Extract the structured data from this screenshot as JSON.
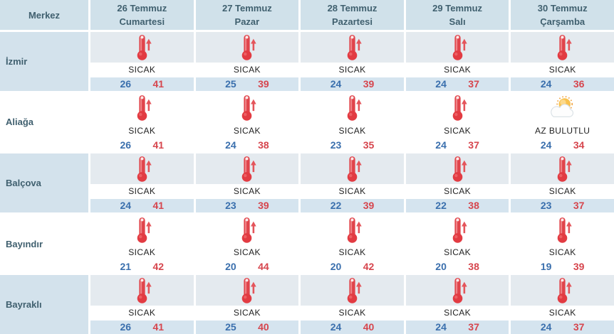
{
  "colors": {
    "header_bg": "#d0e1ea",
    "row_tint_bg": "#d3e2ec",
    "icon_area_tint_bg": "#e4eaef",
    "temps_tint_bg": "#d5e4ef",
    "header_text": "#40606f",
    "min_temp": "#3a6fad",
    "max_temp": "#d6454d",
    "condition_text": "#1f1f1f",
    "thermometer_red": "#e23b42",
    "sun_orange": "#f8c14e"
  },
  "table": {
    "header": {
      "merkez_label": "Merkez",
      "days": [
        {
          "date": "26 Temmuz",
          "day": "Cumartesi"
        },
        {
          "date": "27 Temmuz",
          "day": "Pazar"
        },
        {
          "date": "28 Temmuz",
          "day": "Pazartesi"
        },
        {
          "date": "29 Temmuz",
          "day": "Salı"
        },
        {
          "date": "30 Temmuz",
          "day": "Çarşamba"
        }
      ]
    },
    "rows": [
      {
        "city": "İzmir",
        "cells": [
          {
            "icon": "thermometer-rising-icon",
            "condition": "SICAK",
            "min": "26",
            "max": "41"
          },
          {
            "icon": "thermometer-rising-icon",
            "condition": "SICAK",
            "min": "25",
            "max": "39"
          },
          {
            "icon": "thermometer-rising-icon",
            "condition": "SICAK",
            "min": "24",
            "max": "39"
          },
          {
            "icon": "thermometer-rising-icon",
            "condition": "SICAK",
            "min": "24",
            "max": "37"
          },
          {
            "icon": "thermometer-rising-icon",
            "condition": "SICAK",
            "min": "24",
            "max": "36"
          }
        ]
      },
      {
        "city": "Aliağa",
        "cells": [
          {
            "icon": "thermometer-rising-icon",
            "condition": "SICAK",
            "min": "26",
            "max": "41"
          },
          {
            "icon": "thermometer-rising-icon",
            "condition": "SICAK",
            "min": "24",
            "max": "38"
          },
          {
            "icon": "thermometer-rising-icon",
            "condition": "SICAK",
            "min": "23",
            "max": "35"
          },
          {
            "icon": "thermometer-rising-icon",
            "condition": "SICAK",
            "min": "24",
            "max": "37"
          },
          {
            "icon": "partly-cloudy-icon",
            "condition": "AZ BULUTLU",
            "min": "24",
            "max": "34"
          }
        ]
      },
      {
        "city": "Balçova",
        "cells": [
          {
            "icon": "thermometer-rising-icon",
            "condition": "SICAK",
            "min": "24",
            "max": "41"
          },
          {
            "icon": "thermometer-rising-icon",
            "condition": "SICAK",
            "min": "23",
            "max": "39"
          },
          {
            "icon": "thermometer-rising-icon",
            "condition": "SICAK",
            "min": "22",
            "max": "39"
          },
          {
            "icon": "thermometer-rising-icon",
            "condition": "SICAK",
            "min": "22",
            "max": "38"
          },
          {
            "icon": "thermometer-rising-icon",
            "condition": "SICAK",
            "min": "23",
            "max": "37"
          }
        ]
      },
      {
        "city": "Bayındır",
        "cells": [
          {
            "icon": "thermometer-rising-icon",
            "condition": "SICAK",
            "min": "21",
            "max": "42"
          },
          {
            "icon": "thermometer-rising-icon",
            "condition": "SICAK",
            "min": "20",
            "max": "44"
          },
          {
            "icon": "thermometer-rising-icon",
            "condition": "SICAK",
            "min": "20",
            "max": "42"
          },
          {
            "icon": "thermometer-rising-icon",
            "condition": "SICAK",
            "min": "20",
            "max": "38"
          },
          {
            "icon": "thermometer-rising-icon",
            "condition": "SICAK",
            "min": "19",
            "max": "39"
          }
        ]
      },
      {
        "city": "Bayraklı",
        "cells": [
          {
            "icon": "thermometer-rising-icon",
            "condition": "SICAK",
            "min": "26",
            "max": "41"
          },
          {
            "icon": "thermometer-rising-icon",
            "condition": "SICAK",
            "min": "25",
            "max": "40"
          },
          {
            "icon": "thermometer-rising-icon",
            "condition": "SICAK",
            "min": "24",
            "max": "40"
          },
          {
            "icon": "thermometer-rising-icon",
            "condition": "SICAK",
            "min": "24",
            "max": "37"
          },
          {
            "icon": "thermometer-rising-icon",
            "condition": "SICAK",
            "min": "24",
            "max": "37"
          }
        ]
      }
    ]
  }
}
